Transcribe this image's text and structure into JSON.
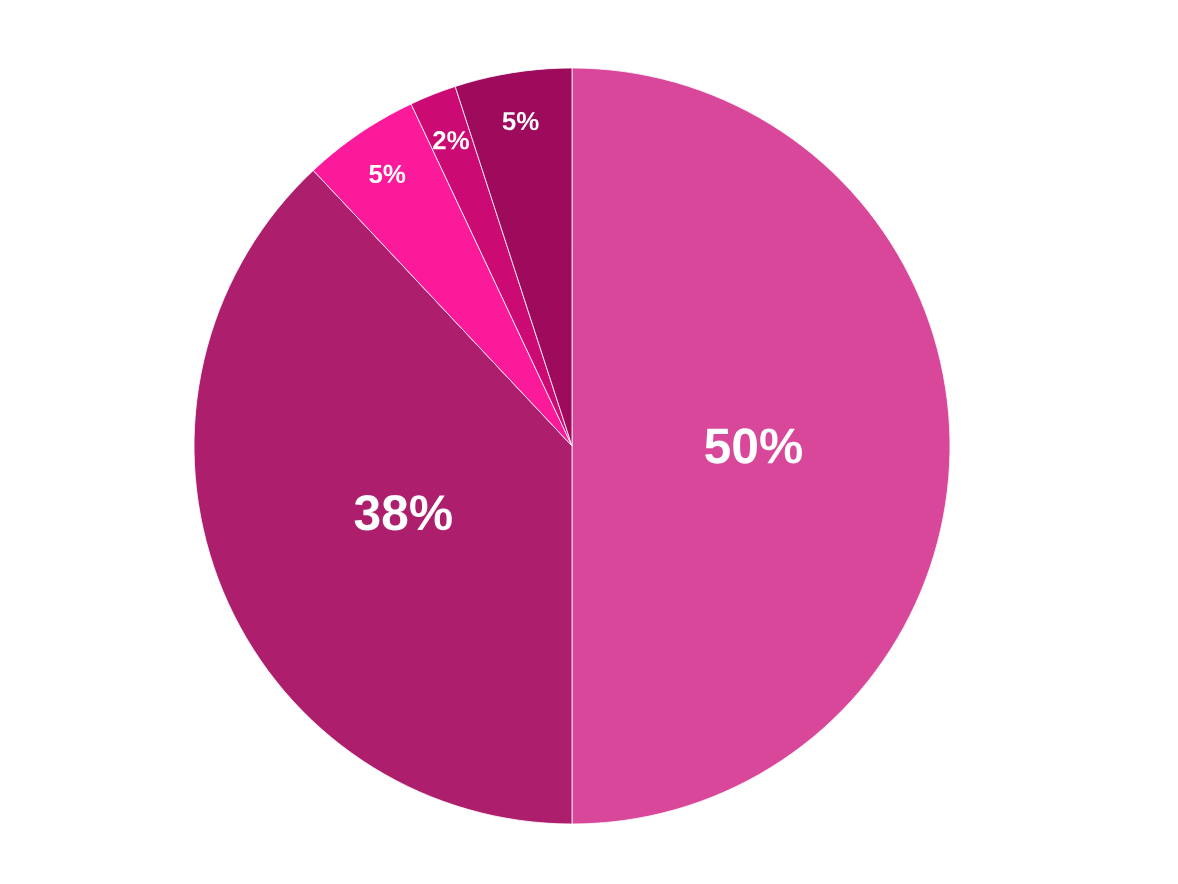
{
  "chart_data": {
    "type": "pie",
    "categories": [
      null,
      null,
      null,
      null,
      null
    ],
    "values": [
      50,
      38,
      5,
      2,
      5
    ],
    "value_labels": [
      "50%",
      "38%",
      "5%",
      "2%",
      "5%"
    ],
    "colors": [
      "#d9479a",
      "#ad1f6d",
      "#fb1a9a",
      "#cc0a73",
      "#9e0a5c"
    ]
  }
}
